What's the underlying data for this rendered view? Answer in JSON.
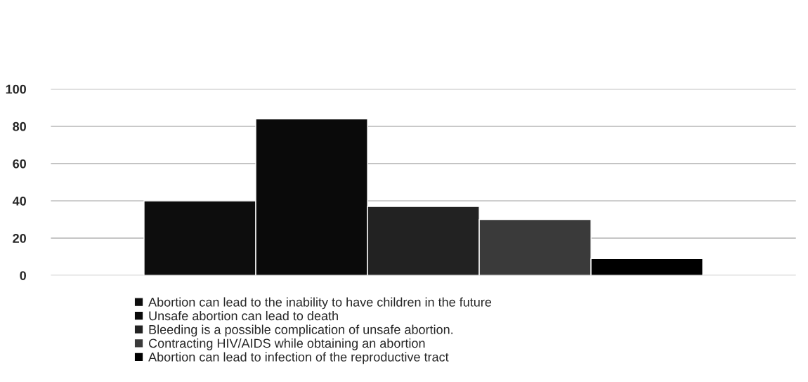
{
  "chart_data": {
    "type": "bar",
    "categories": [
      null
    ],
    "series": [
      {
        "name": "Abortion can lead to the inability to have children in the future",
        "color": "#0d0d0d",
        "values": [
          40
        ]
      },
      {
        "name": "Unsafe abortion can lead to death",
        "color": "#0a0a0a",
        "values": [
          84
        ]
      },
      {
        "name": "Bleeding is a possible complication of unsafe abortion.",
        "color": "#222222",
        "values": [
          37
        ]
      },
      {
        "name": "Contracting HIV/AIDS while obtaining an abortion",
        "color": "#3a3a3a",
        "values": [
          30
        ]
      },
      {
        "name": "Abortion can lead to infection of the reproductive tract",
        "color": "#000000",
        "values": [
          9
        ]
      }
    ],
    "ylim": [
      0,
      100
    ],
    "yticks": [
      0,
      20,
      40,
      60,
      80,
      100
    ],
    "grid": "y",
    "legend": "bottom"
  }
}
